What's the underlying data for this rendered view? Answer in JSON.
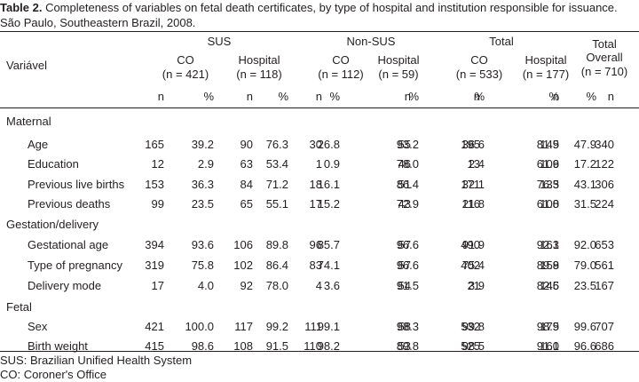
{
  "caption": {
    "label": "Table 2.",
    "text": " Completeness of variables on fetal death certificates, by type of hospital and institution responsible for issuance. São Paulo, Southeastern Brazil, 2008."
  },
  "header": {
    "variable_label": "Variável",
    "groups": [
      "SUS",
      "Non-SUS",
      "Total"
    ],
    "subgroups": [
      {
        "name": "CO",
        "count": "(n = 421)"
      },
      {
        "name": "Hospital",
        "count": "(n = 118)"
      },
      {
        "name": "CO",
        "count": "(n = 112)"
      },
      {
        "name": "Hospital",
        "count": "(n = 59)"
      },
      {
        "name": "CO",
        "count": "(n = 533)"
      },
      {
        "name": "Hospital",
        "count": "(n = 177)"
      }
    ],
    "overall": {
      "line1": "Total",
      "line2": "Overall",
      "count": "(n = 710)"
    },
    "n_label": "n",
    "pct_label": "%"
  },
  "sections": [
    {
      "title": "Maternal",
      "rows": [
        {
          "label": "Age",
          "values": [
            "165",
            "39.2",
            "90",
            "76.3",
            "30",
            "26.8",
            "55",
            "93.2",
            "195",
            "36.6",
            "145",
            "81.9",
            "340",
            "47.9"
          ]
        },
        {
          "label": "Education",
          "values": [
            "12",
            "2.9",
            "63",
            "53.4",
            "1",
            "0.9",
            "46",
            "78.0",
            "13",
            "2.4",
            "109",
            "61.6",
            "122",
            "17.2"
          ]
        },
        {
          "label": "Previous live births",
          "values": [
            "153",
            "36.3",
            "84",
            "71.2",
            "18",
            "16.1",
            "51",
            "86.4",
            "171",
            "32.1",
            "135",
            "76.3",
            "306",
            "43.1"
          ]
        },
        {
          "label": "Previous deaths",
          "values": [
            "99",
            "23.5",
            "65",
            "55.1",
            "17",
            "15.2",
            "43",
            "72.9",
            "116",
            "21.8",
            "108",
            "61.0",
            "224",
            "31.5"
          ]
        }
      ]
    },
    {
      "title": "Gestation/delivery",
      "rows": [
        {
          "label": "Gestational age",
          "values": [
            "394",
            "93.6",
            "106",
            "89.8",
            "96",
            "85.7",
            "57",
            "96.6",
            "490",
            "91.9",
            "163",
            "92.1",
            "653",
            "92.0"
          ]
        },
        {
          "label": "Type of pregnancy",
          "values": [
            "319",
            "75.8",
            "102",
            "86.4",
            "83",
            "74.1",
            "57",
            "96.6",
            "402",
            "75.4",
            "159",
            "89.8",
            "561",
            "79.0"
          ]
        },
        {
          "label": "Delivery mode",
          "values": [
            "17",
            "4.0",
            "92",
            "78.0",
            "4",
            "3.6",
            "54",
            "91.5",
            "21",
            "3.9",
            "146",
            "82.5",
            "167",
            "23.5"
          ]
        }
      ]
    },
    {
      "title": "Fetal",
      "rows": [
        {
          "label": "Sex",
          "values": [
            "421",
            "100.0",
            "117",
            "99.2",
            "111",
            "99.1",
            "58",
            "98.3",
            "532",
            "99.8",
            "175",
            "98.9",
            "707",
            "99.6"
          ]
        },
        {
          "label": "Birth weight",
          "values": [
            "415",
            "98.6",
            "108",
            "91.5",
            "110",
            "98.2",
            "53",
            "89.8",
            "525",
            "98.5",
            "161",
            "91.0",
            "686",
            "96.6"
          ]
        }
      ]
    }
  ],
  "footnotes": [
    "SUS: Brazilian Unified Health System",
    "CO: Coroner's Office"
  ]
}
